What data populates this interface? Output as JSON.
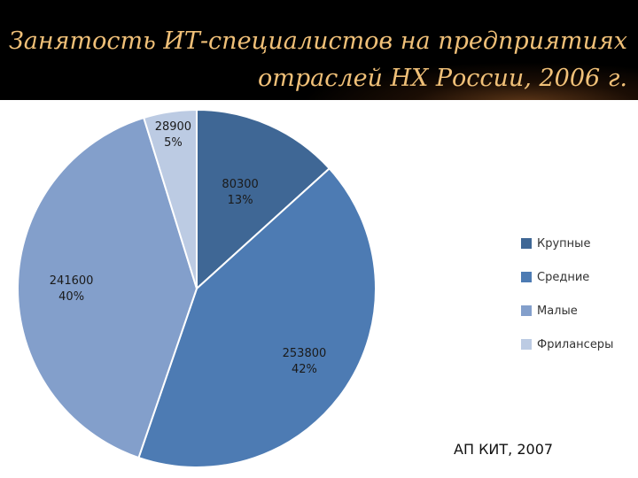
{
  "title": "Занятость ИТ-специалистов на предприятиях отраслей НХ России, 2006 г.",
  "source": "АП КИТ, 2007",
  "chart_data": {
    "type": "pie",
    "title": "Занятость ИТ-специалистов на предприятиях отраслей НХ России, 2006 г.",
    "categories": [
      "Крупные",
      "Средние",
      "Малые",
      "Фрилансеры"
    ],
    "values": [
      80300,
      253800,
      241600,
      28900
    ],
    "percent_labels": [
      "13%",
      "42%",
      "40%",
      "5%"
    ],
    "value_labels": [
      "80300",
      "253800",
      "241600",
      "28900"
    ],
    "colors": [
      "#3f6795",
      "#4d7bb3",
      "#839fcb",
      "#bccbe3"
    ],
    "legend_position": "right"
  }
}
